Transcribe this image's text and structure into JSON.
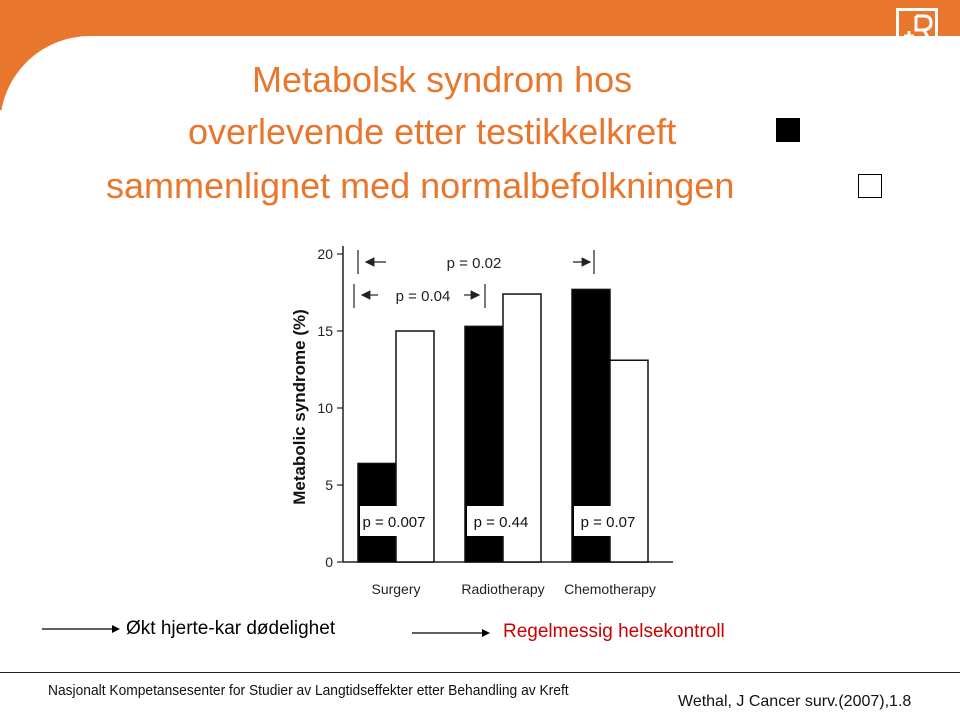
{
  "title": {
    "line1": "Metabolsk syndrom hos",
    "line2": "overlevende etter testikkelkreft",
    "line3": "sammenlignet med normalbefolkningen"
  },
  "colors": {
    "accent": "#e8762c",
    "red_text": "#cc0000",
    "bar_dark": "#000000",
    "bar_light": "#ffffff"
  },
  "chart_data": {
    "type": "bar",
    "ylabel": "Metabolic syndrome (%)",
    "ylim": [
      0,
      20
    ],
    "yticks": [
      "0",
      "5",
      "10",
      "15",
      "20"
    ],
    "categories": [
      "Surgery",
      "Radiotherapy",
      "Chemotherapy"
    ],
    "series": [
      {
        "values": [
          6.4,
          15.3,
          17.7
        ],
        "color": "#000000"
      },
      {
        "values": [
          15.0,
          17.4,
          13.1
        ],
        "color": "#ffffff"
      }
    ],
    "bar_pvalues": [
      "p = 0.007",
      "p = 0.44",
      "p = 0.07"
    ],
    "comparisons": [
      "p = 0.02",
      "p = 0.04"
    ]
  },
  "notes": {
    "left": "Økt hjerte-kar dødelighet",
    "right": "Regelmessig helsekontroll"
  },
  "footer": {
    "left": "Nasjonalt Kompetansesenter for Studier av Langtidseffekter etter Behandling av Kreft",
    "right": "Wethal, J Cancer surv.(2007),1.8"
  }
}
